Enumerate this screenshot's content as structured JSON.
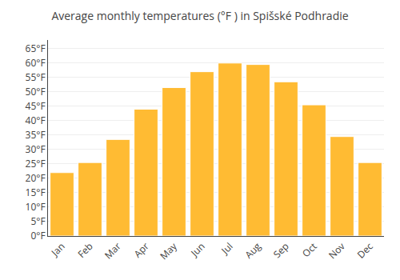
{
  "chart_data": {
    "type": "bar",
    "title": "Average monthly temperatures (°F ) in Spišské Podhradie",
    "categories": [
      "Jan",
      "Feb",
      "Mar",
      "Apr",
      "May",
      "Jun",
      "Jul",
      "Aug",
      "Sep",
      "Oct",
      "Nov",
      "Dec"
    ],
    "values": [
      22,
      25.5,
      33.5,
      44,
      51.5,
      57,
      60,
      59.5,
      53.5,
      45.5,
      34.5,
      25.5
    ],
    "color": "#FFBB33",
    "ylim": [
      0,
      68
    ],
    "yticks": [
      {
        "value": 0,
        "label": "0°F"
      },
      {
        "value": 5,
        "label": "5°F"
      },
      {
        "value": 10,
        "label": "10°F"
      },
      {
        "value": 15,
        "label": "15°F"
      },
      {
        "value": 20,
        "label": "20°F"
      },
      {
        "value": 25,
        "label": "25°F"
      },
      {
        "value": 30,
        "label": "30°F"
      },
      {
        "value": 35,
        "label": "35°F"
      },
      {
        "value": 40,
        "label": "40°F"
      },
      {
        "value": 45,
        "label": "45°F"
      },
      {
        "value": 50,
        "label": "50°F"
      },
      {
        "value": 55,
        "label": "55°F"
      },
      {
        "value": 60,
        "label": "60°F"
      },
      {
        "value": 65,
        "label": "65°F"
      }
    ],
    "grid": true
  }
}
